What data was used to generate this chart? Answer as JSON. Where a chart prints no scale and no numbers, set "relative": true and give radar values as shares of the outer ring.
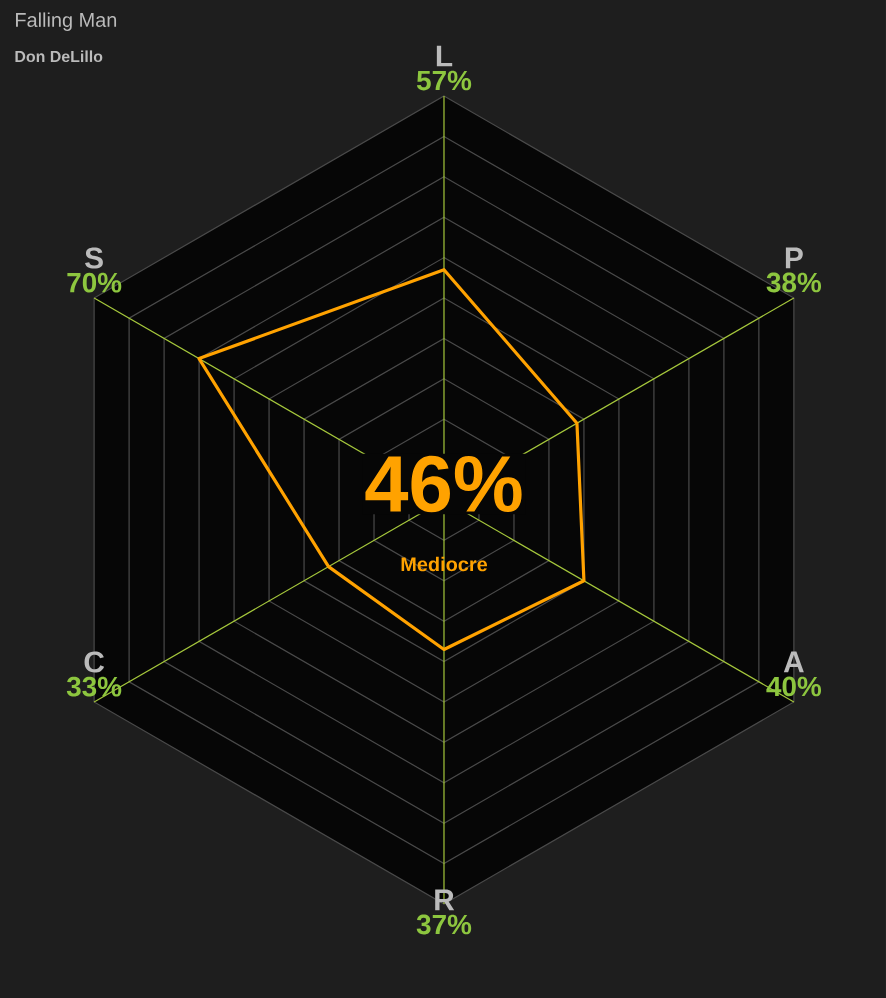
{
  "chart_data": {
    "type": "radar",
    "title": "Falling Man",
    "subtitle": "Don DeLillo",
    "categories": [
      "L",
      "P",
      "A",
      "R",
      "C",
      "S"
    ],
    "relative": true,
    "series": [
      {
        "color": "#ffa200",
        "values": [
          0.57,
          0.38,
          0.4,
          0.37,
          0.33,
          0.7
        ]
      }
    ],
    "grid": true,
    "marker": "none",
    "annotations": [
      "57%",
      "38%",
      "40%",
      "37%",
      "33%",
      "70%",
      "46%",
      "Mediocre"
    ]
  }
}
